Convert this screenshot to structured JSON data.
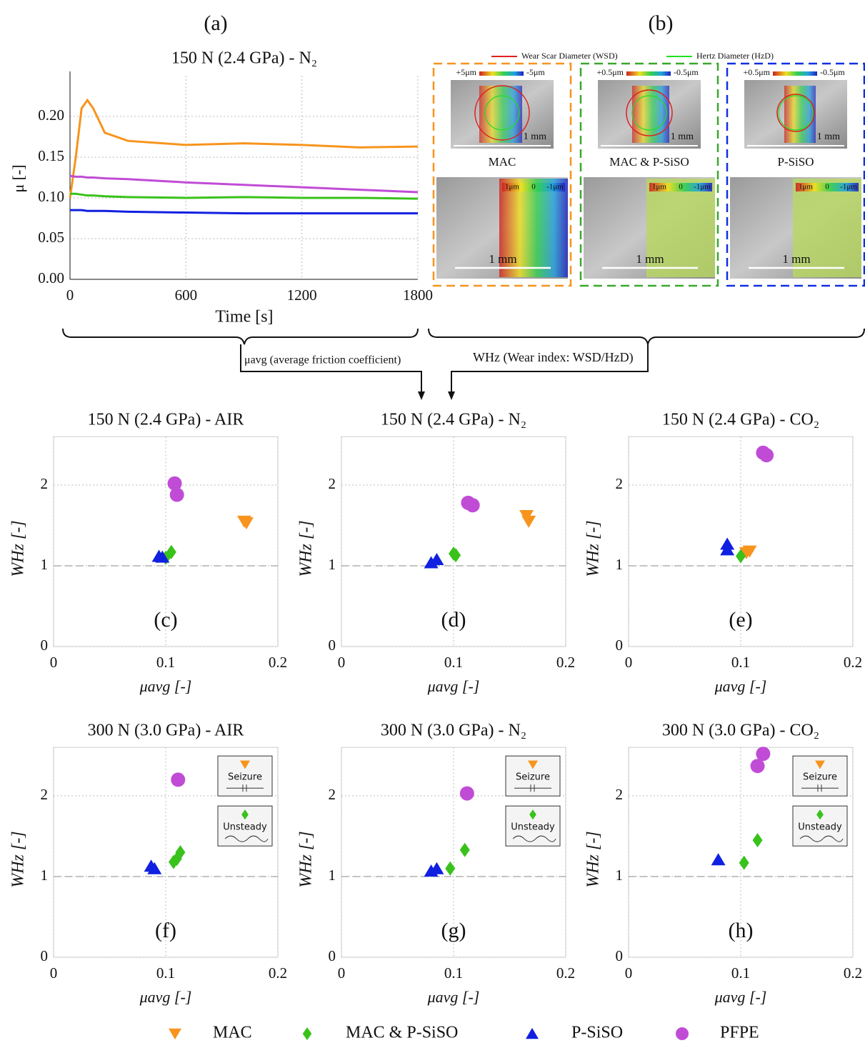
{
  "chart_data": [
    {
      "type": "line",
      "panel_label": "(a)",
      "title": "150 N (2.4 GPa) -  N₂",
      "x_label": "Time [s]",
      "y_label": "μ [-]",
      "x": [
        0,
        30,
        60,
        90,
        120,
        180,
        300,
        600,
        900,
        1200,
        1500,
        1800
      ],
      "series": [
        {
          "name": "MAC",
          "color": "#f7941d",
          "values": [
            0.1,
            0.15,
            0.21,
            0.22,
            0.21,
            0.18,
            0.17,
            0.165,
            0.167,
            0.165,
            0.162,
            0.163
          ]
        },
        {
          "name": "MAC & P-SiSO",
          "color": "#39c21b",
          "values": [
            0.105,
            0.105,
            0.104,
            0.103,
            0.103,
            0.102,
            0.101,
            0.1,
            0.101,
            0.1,
            0.1,
            0.099
          ]
        },
        {
          "name": "P-SiSO",
          "color": "#1020e0",
          "values": [
            0.085,
            0.085,
            0.085,
            0.084,
            0.084,
            0.084,
            0.083,
            0.082,
            0.081,
            0.081,
            0.081,
            0.081
          ]
        },
        {
          "name": "PFPE",
          "color": "#c04cd6",
          "values": [
            0.127,
            0.126,
            0.126,
            0.125,
            0.125,
            0.124,
            0.123,
            0.119,
            0.116,
            0.113,
            0.11,
            0.107
          ]
        }
      ],
      "xlim": [
        0,
        1800
      ],
      "xticks": [
        0,
        600,
        1200,
        1800
      ],
      "ylim": [
        0,
        0.25
      ],
      "yticks": [
        {
          "value": 0,
          "label": "0.00"
        },
        {
          "value": 0.05,
          "label": "0.05"
        },
        {
          "value": 0.1,
          "label": "0.10"
        },
        {
          "value": 0.15,
          "label": "0.15"
        },
        {
          "value": 0.2,
          "label": "0.20"
        }
      ],
      "grid": true
    },
    {
      "type": "scatter",
      "panel_label": "(c)",
      "title": "150 N (2.4 GPa) -  AIR",
      "x_label": "μavg [-]",
      "y_label": "WHz [-]",
      "xlim": [
        0,
        0.2
      ],
      "xticks": [
        0,
        0.1,
        0.2
      ],
      "ylim": [
        0,
        2.6
      ],
      "yticks": [
        0,
        1,
        2
      ],
      "ref_line": 1,
      "grid": true,
      "series": [
        {
          "name": "MAC",
          "color": "#f7941d",
          "marker": "triangle-down",
          "x": [
            0.17,
            0.172
          ],
          "values": [
            1.55,
            1.53
          ]
        },
        {
          "name": "MAC & P-SiSO",
          "color": "#39c21b",
          "marker": "diamond",
          "x": [
            0.105,
            0.1
          ],
          "values": [
            1.17,
            1.1
          ]
        },
        {
          "name": "P-SiSO",
          "color": "#1020e0",
          "marker": "triangle-up",
          "x": [
            0.094,
            0.097
          ],
          "values": [
            1.12,
            1.11
          ]
        },
        {
          "name": "PFPE",
          "color": "#c04cd6",
          "marker": "circle",
          "x": [
            0.108,
            0.11
          ],
          "values": [
            2.02,
            1.88
          ]
        }
      ]
    },
    {
      "type": "scatter",
      "panel_label": "(d)",
      "title": "150 N (2.4 GPa) -  N₂",
      "x_label": "μavg [-]",
      "y_label": "WHz [-]",
      "xlim": [
        0,
        0.2
      ],
      "xticks": [
        0,
        0.1,
        0.2
      ],
      "ylim": [
        0,
        2.6
      ],
      "yticks": [
        0,
        1,
        2
      ],
      "ref_line": 1,
      "grid": true,
      "series": [
        {
          "name": "MAC",
          "color": "#f7941d",
          "marker": "triangle-down",
          "x": [
            0.165,
            0.167
          ],
          "values": [
            1.62,
            1.55
          ]
        },
        {
          "name": "MAC & P-SiSO",
          "color": "#39c21b",
          "marker": "diamond",
          "x": [
            0.1,
            0.102
          ],
          "values": [
            1.15,
            1.13
          ]
        },
        {
          "name": "P-SiSO",
          "color": "#1020e0",
          "marker": "triangle-up",
          "x": [
            0.08,
            0.085
          ],
          "values": [
            1.04,
            1.08
          ]
        },
        {
          "name": "PFPE",
          "color": "#c04cd6",
          "marker": "circle",
          "x": [
            0.113,
            0.117
          ],
          "values": [
            1.78,
            1.75
          ]
        }
      ]
    },
    {
      "type": "scatter",
      "panel_label": "(e)",
      "title": "150 N (2.4 GPa) -  CO₂",
      "x_label": "μavg [-]",
      "y_label": "WHz [-]",
      "xlim": [
        0,
        0.2
      ],
      "xticks": [
        0,
        0.1,
        0.2
      ],
      "ylim": [
        0,
        2.6
      ],
      "yticks": [
        0,
        1,
        2
      ],
      "ref_line": 1,
      "grid": true,
      "series": [
        {
          "name": "MAC",
          "color": "#f7941d",
          "marker": "triangle-down",
          "x": [
            0.105,
            0.108
          ],
          "values": [
            1.16,
            1.18
          ]
        },
        {
          "name": "MAC & P-SiSO",
          "color": "#39c21b",
          "marker": "diamond",
          "x": [
            0.1
          ],
          "values": [
            1.12
          ]
        },
        {
          "name": "P-SiSO",
          "color": "#1020e0",
          "marker": "triangle-up",
          "x": [
            0.088,
            0.088
          ],
          "values": [
            1.27,
            1.2
          ]
        },
        {
          "name": "PFPE",
          "color": "#c04cd6",
          "marker": "circle",
          "x": [
            0.12,
            0.123
          ],
          "values": [
            2.4,
            2.37
          ]
        }
      ]
    },
    {
      "type": "scatter",
      "panel_label": "(f)",
      "title": "300 N (3.0 GPa) -  AIR",
      "x_label": "μavg [-]",
      "y_label": "WHz [-]",
      "xlim": [
        0,
        0.2
      ],
      "xticks": [
        0,
        0.1,
        0.2
      ],
      "ylim": [
        0,
        2.6
      ],
      "yticks": [
        0,
        1,
        2
      ],
      "ref_line": 1,
      "grid": true,
      "annotations": [
        "Seizure",
        "Unsteady"
      ],
      "series": [
        {
          "name": "MAC & P-SiSO",
          "color": "#39c21b",
          "marker": "diamond",
          "x": [
            0.107,
            0.11,
            0.113
          ],
          "values": [
            1.18,
            1.22,
            1.3
          ]
        },
        {
          "name": "P-SiSO",
          "color": "#1020e0",
          "marker": "triangle-up",
          "x": [
            0.087,
            0.09
          ],
          "values": [
            1.13,
            1.1
          ]
        },
        {
          "name": "PFPE",
          "color": "#c04cd6",
          "marker": "circle",
          "x": [
            0.111
          ],
          "values": [
            2.2
          ]
        }
      ]
    },
    {
      "type": "scatter",
      "panel_label": "(g)",
      "title": "300 N (3.0 GPa) -  N₂",
      "x_label": "μavg [-]",
      "y_label": "WHz [-]",
      "xlim": [
        0,
        0.2
      ],
      "xticks": [
        0,
        0.1,
        0.2
      ],
      "ylim": [
        0,
        2.6
      ],
      "yticks": [
        0,
        1,
        2
      ],
      "ref_line": 1,
      "grid": true,
      "annotations": [
        "Seizure",
        "Unsteady"
      ],
      "series": [
        {
          "name": "MAC & P-SiSO",
          "color": "#39c21b",
          "marker": "diamond",
          "x": [
            0.097,
            0.11
          ],
          "values": [
            1.1,
            1.33
          ]
        },
        {
          "name": "P-SiSO",
          "color": "#1020e0",
          "marker": "triangle-up",
          "x": [
            0.08,
            0.085
          ],
          "values": [
            1.07,
            1.1
          ]
        },
        {
          "name": "PFPE",
          "color": "#c04cd6",
          "marker": "circle",
          "x": [
            0.112
          ],
          "values": [
            2.03
          ]
        }
      ]
    },
    {
      "type": "scatter",
      "panel_label": "(h)",
      "title": "300 N (3.0 GPa) -  CO₂",
      "x_label": "μavg [-]",
      "y_label": "WHz [-]",
      "xlim": [
        0,
        0.2
      ],
      "xticks": [
        0,
        0.1,
        0.2
      ],
      "ylim": [
        0,
        2.6
      ],
      "yticks": [
        0,
        1,
        2
      ],
      "ref_line": 1,
      "grid": true,
      "annotations": [
        "Seizure",
        "Unsteady"
      ],
      "series": [
        {
          "name": "MAC & P-SiSO",
          "color": "#39c21b",
          "marker": "diamond",
          "x": [
            0.103,
            0.115
          ],
          "values": [
            1.17,
            1.45
          ]
        },
        {
          "name": "P-SiSO",
          "color": "#1020e0",
          "marker": "triangle-up",
          "x": [
            0.08
          ],
          "values": [
            1.21
          ]
        },
        {
          "name": "PFPE",
          "color": "#c04cd6",
          "marker": "circle",
          "x": [
            0.115,
            0.12
          ],
          "values": [
            2.37,
            2.52
          ]
        }
      ]
    }
  ],
  "legend": [
    {
      "name": "MAC",
      "color": "#f7941d",
      "marker": "triangle-down"
    },
    {
      "name": "MAC & P-SiSO",
      "color": "#39c21b",
      "marker": "diamond"
    },
    {
      "name": "P-SiSO",
      "color": "#1020e0",
      "marker": "triangle-up"
    },
    {
      "name": "PFPE",
      "color": "#c04cd6",
      "marker": "circle"
    }
  ],
  "panel_b": {
    "label": "(b)",
    "legend": [
      {
        "name": "Wear Scar Diameter (WSD)",
        "color": "#e02020"
      },
      {
        "name": "Hertz Diameter (HzD)",
        "color": "#20e020"
      }
    ],
    "columns": [
      {
        "name": "MAC",
        "color": "#f7941d",
        "top_scale": [
          "+5μm",
          "-5μm"
        ],
        "top_bar": "1 mm",
        "bottom_scale": [
          "1μm",
          "0",
          "-1μm"
        ],
        "bottom_bar": "1 mm"
      },
      {
        "name": "MAC & P-SiSO",
        "color": "#39a82b",
        "top_scale": [
          "+0.5μm",
          "-0.5μm"
        ],
        "top_bar": "1 mm",
        "bottom_scale": [
          "1μm",
          "0",
          "-1μm"
        ],
        "bottom_bar": "1 mm"
      },
      {
        "name": "P-SiSO",
        "color": "#1030e0",
        "top_scale": [
          "+0.5μm",
          "-0.5μm"
        ],
        "top_bar": "1 mm",
        "bottom_scale": [
          "1μm",
          "0",
          "-1μm"
        ],
        "bottom_bar": "1 mm"
      }
    ]
  },
  "connectors": {
    "friction": "μavg (average friction coefficient)",
    "wear": "WHz (Wear index: WSD/HzD)"
  }
}
